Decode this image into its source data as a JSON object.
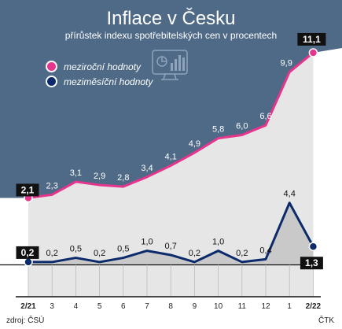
{
  "header": {
    "title": "Inflace v Česku",
    "subtitle": "přírůstek indexu spotřebitelských cen v procentech"
  },
  "legend": {
    "yearly": "meziroční hodnoty",
    "monthly": "meziměsíční hodnoty"
  },
  "footer": {
    "source": "zdroj: ČSÚ",
    "agency": "ČTK"
  },
  "icons": {
    "legend_icon": "chart-monitor-icon"
  },
  "colors": {
    "background": "#4f6a87",
    "yearly_line": "#e6358d",
    "monthly_line": "#0d2b6b",
    "yearly_area": "#e6e6e6",
    "monthly_area": "#c9c9c9"
  },
  "chart_data": {
    "type": "line",
    "title": "Inflace v Česku",
    "subtitle": "přírůstek indexu spotřebitelských cen v procentech",
    "xlabel": "",
    "ylabel": "",
    "categories": [
      "2/21",
      "3",
      "4",
      "5",
      "6",
      "7",
      "8",
      "9",
      "10",
      "11",
      "12",
      "1",
      "2/22"
    ],
    "series": [
      {
        "name": "meziroční hodnoty",
        "values": [
          2.1,
          2.3,
          3.1,
          2.9,
          2.8,
          3.4,
          4.1,
          4.9,
          5.8,
          6.0,
          6.6,
          9.9,
          11.1
        ],
        "labels": [
          "2,1",
          "2,3",
          "3,1",
          "2,9",
          "2,8",
          "3,4",
          "4,1",
          "4,9",
          "5,8",
          "6,0",
          "6,6",
          "9,9",
          "11,1"
        ]
      },
      {
        "name": "meziměsíční hodnoty",
        "values": [
          0.2,
          0.2,
          0.5,
          0.2,
          0.5,
          1.0,
          0.7,
          0.2,
          1.0,
          0.2,
          0.4,
          4.4,
          1.3
        ],
        "labels": [
          "0,2",
          "0,2",
          "0,5",
          "0,2",
          "0,5",
          "1,0",
          "0,7",
          "0,2",
          "1,0",
          "0,2",
          "0,4",
          "4,4",
          "1,3"
        ]
      }
    ],
    "grid": false,
    "legend": "top-left"
  }
}
